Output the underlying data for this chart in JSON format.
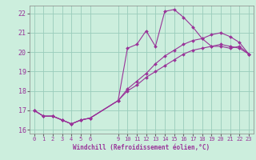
{
  "xlabel": "Windchill (Refroidissement éolien,°C)",
  "bg_color": "#cceedd",
  "grid_color": "#99ccbb",
  "line_color": "#993399",
  "hours": [
    0,
    1,
    2,
    3,
    4,
    5,
    6,
    9,
    10,
    11,
    12,
    13,
    14,
    15,
    16,
    17,
    18,
    19,
    20,
    21,
    22,
    23
  ],
  "line1": [
    17.0,
    16.7,
    16.7,
    16.5,
    16.3,
    16.5,
    16.6,
    17.5,
    20.2,
    20.4,
    21.1,
    20.3,
    22.1,
    22.2,
    21.8,
    21.3,
    20.7,
    20.3,
    20.3,
    20.2,
    20.3,
    19.9
  ],
  "line2": [
    17.0,
    16.7,
    16.7,
    16.5,
    16.3,
    16.5,
    16.6,
    17.5,
    18.1,
    18.5,
    18.9,
    19.4,
    19.8,
    20.1,
    20.4,
    20.6,
    20.7,
    20.9,
    21.0,
    20.8,
    20.5,
    19.9
  ],
  "line3": [
    17.0,
    16.7,
    16.7,
    16.5,
    16.3,
    16.5,
    16.6,
    17.5,
    18.0,
    18.3,
    18.7,
    19.0,
    19.3,
    19.6,
    19.9,
    20.1,
    20.2,
    20.3,
    20.4,
    20.3,
    20.2,
    19.9
  ],
  "ylim": [
    15.8,
    22.4
  ],
  "xlim": [
    -0.5,
    23.5
  ],
  "yticks": [
    16,
    17,
    18,
    19,
    20,
    21,
    22
  ],
  "xticks": [
    0,
    1,
    2,
    3,
    4,
    5,
    6,
    9,
    10,
    11,
    12,
    13,
    14,
    15,
    16,
    17,
    18,
    19,
    20,
    21,
    22,
    23
  ]
}
